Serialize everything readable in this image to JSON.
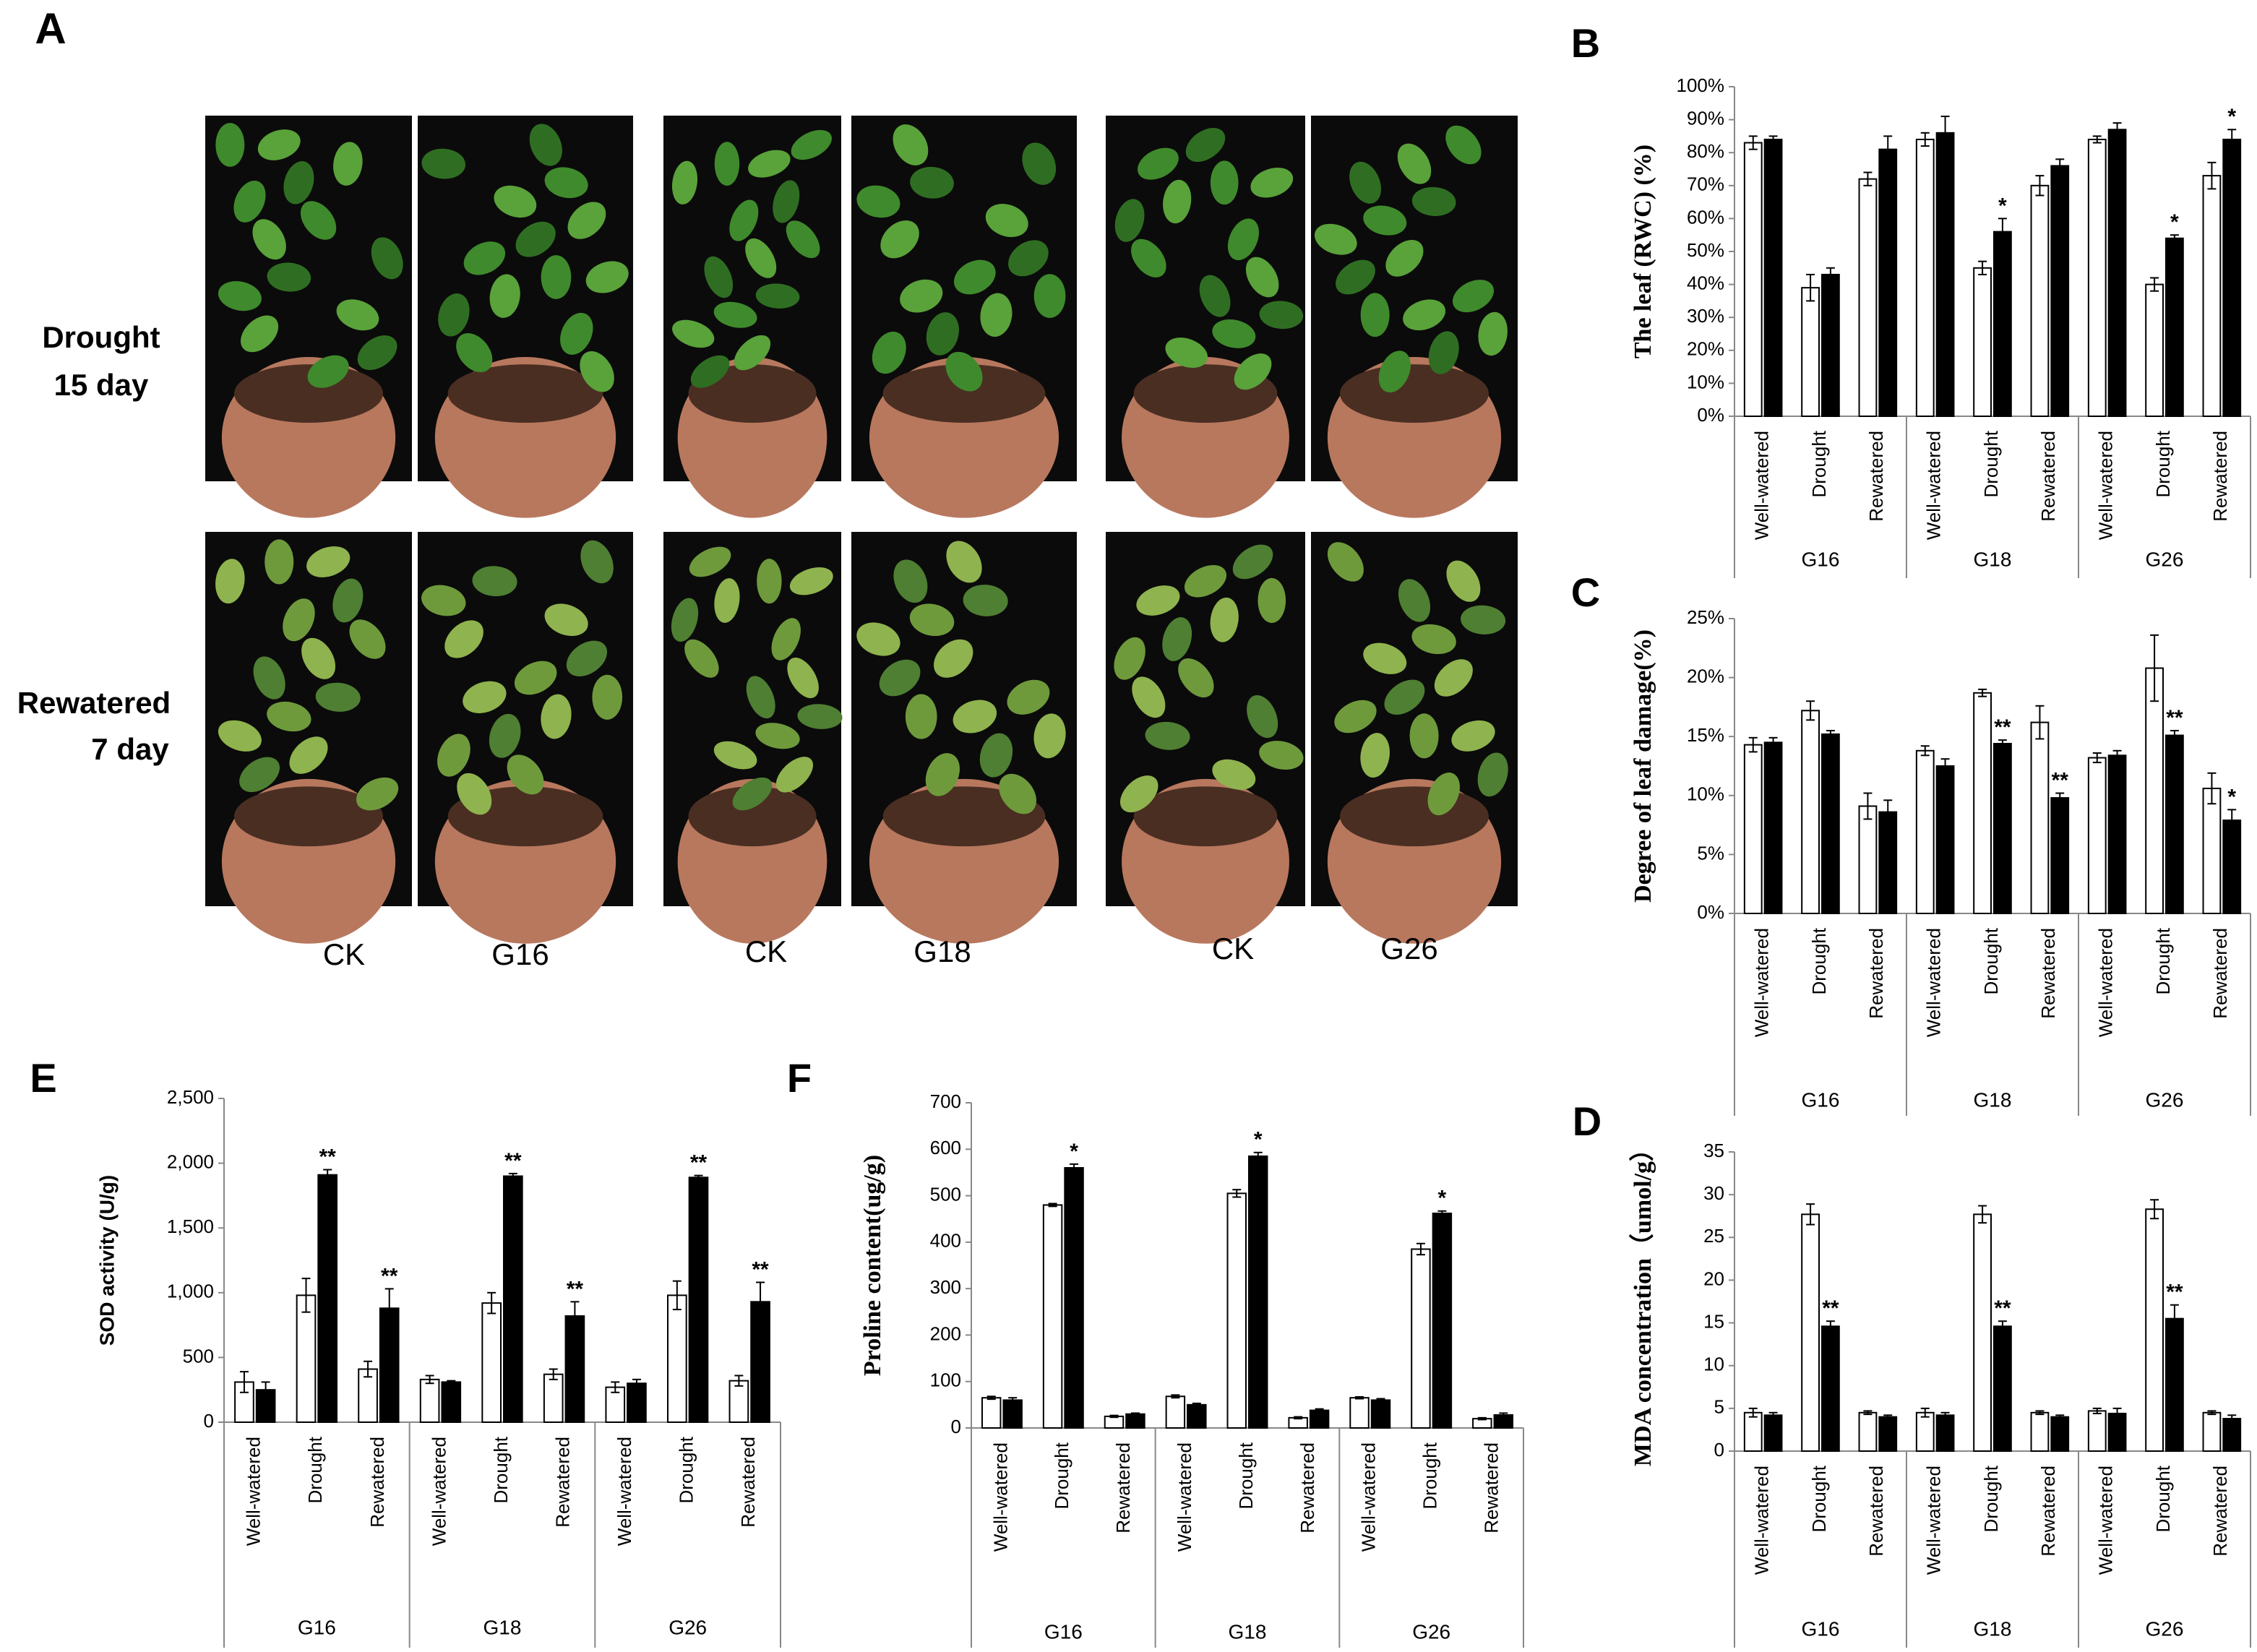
{
  "photo_panel": {
    "label": "A",
    "rows": [
      [
        "Drought",
        "15 day"
      ],
      [
        "Rewatered",
        "7 day"
      ]
    ],
    "columns": [
      "CK",
      "G16",
      "CK",
      "G18",
      "CK",
      "G26"
    ]
  },
  "chart_data": [
    {
      "type": "bar",
      "panel": "B",
      "ylabel": "The leaf (RWC) (%)",
      "categories": [
        "Well-watered",
        "Drought",
        "Rewatered",
        "Well-watered",
        "Drought",
        "Rewatered",
        "Well-watered",
        "Drought",
        "Rewatered"
      ],
      "groups": [
        "G16",
        "G18",
        "G26"
      ],
      "series": [
        {
          "color": "#ffffff",
          "values": [
            83,
            39,
            72,
            84,
            45,
            70,
            84,
            40,
            73
          ],
          "errors": [
            2,
            4,
            2,
            2,
            2,
            3,
            1,
            2,
            4
          ]
        },
        {
          "color": "#000000",
          "values": [
            84,
            43,
            81,
            86,
            56,
            76,
            87,
            54,
            84
          ],
          "errors": [
            1,
            2,
            4,
            5,
            4,
            2,
            2,
            1,
            3
          ],
          "significance": [
            null,
            null,
            null,
            null,
            "*",
            null,
            null,
            "*",
            "*"
          ]
        }
      ],
      "ylim": [
        0,
        100
      ],
      "yticks": [
        {
          "value": 0,
          "label": "0%"
        },
        {
          "value": 10,
          "label": "10%"
        },
        {
          "value": 20,
          "label": "20%"
        },
        {
          "value": 30,
          "label": "30%"
        },
        {
          "value": 40,
          "label": "40%"
        },
        {
          "value": 50,
          "label": "50%"
        },
        {
          "value": 60,
          "label": "60%"
        },
        {
          "value": 70,
          "label": "70%"
        },
        {
          "value": 80,
          "label": "80%"
        },
        {
          "value": 90,
          "label": "90%"
        },
        {
          "value": 100,
          "label": "100%"
        }
      ]
    },
    {
      "type": "bar",
      "panel": "C",
      "ylabel": "Degree of leaf damage(%)",
      "categories": [
        "Well-watered",
        "Drought",
        "Rewatered",
        "Well-watered",
        "Drought",
        "Rewatered",
        "Well-watered",
        "Drought",
        "Rewatered"
      ],
      "groups": [
        "G16",
        "G18",
        "G26"
      ],
      "series": [
        {
          "color": "#ffffff",
          "values": [
            14.3,
            17.2,
            9.1,
            13.8,
            18.7,
            16.2,
            13.2,
            20.8,
            10.6
          ],
          "errors": [
            0.6,
            0.8,
            1.1,
            0.4,
            0.3,
            1.4,
            0.4,
            2.8,
            1.3
          ]
        },
        {
          "color": "#000000",
          "values": [
            14.5,
            15.2,
            8.6,
            12.5,
            14.4,
            9.8,
            13.4,
            15.1,
            7.9
          ],
          "errors": [
            0.4,
            0.3,
            1.0,
            0.6,
            0.3,
            0.4,
            0.4,
            0.4,
            0.9
          ],
          "significance": [
            null,
            null,
            null,
            null,
            "**",
            "**",
            null,
            "**",
            "*"
          ]
        }
      ],
      "ylim": [
        0,
        25
      ],
      "yticks": [
        {
          "value": 0,
          "label": "0%"
        },
        {
          "value": 5,
          "label": "5%"
        },
        {
          "value": 10,
          "label": "10%"
        },
        {
          "value": 15,
          "label": "15%"
        },
        {
          "value": 20,
          "label": "20%"
        },
        {
          "value": 25,
          "label": "25%"
        }
      ]
    },
    {
      "type": "bar",
      "panel": "D",
      "ylabel": "MDA concentration（umol/g）",
      "categories": [
        "Well-watered",
        "Drought",
        "Rewatered",
        "Well-watered",
        "Drought",
        "Rewatered",
        "Well-watered",
        "Drought",
        "Rewatered"
      ],
      "groups": [
        "G16",
        "G18",
        "G26"
      ],
      "series": [
        {
          "color": "#ffffff",
          "values": [
            4.5,
            27.7,
            4.5,
            4.5,
            27.7,
            4.5,
            4.7,
            28.3,
            4.5
          ],
          "errors": [
            0.5,
            1.2,
            0.2,
            0.5,
            1.0,
            0.2,
            0.3,
            1.1,
            0.2
          ]
        },
        {
          "color": "#000000",
          "values": [
            4.2,
            14.6,
            4.0,
            4.2,
            14.6,
            4.0,
            4.4,
            15.5,
            3.8
          ],
          "errors": [
            0.3,
            0.6,
            0.2,
            0.3,
            0.6,
            0.2,
            0.6,
            1.6,
            0.4
          ],
          "significance": [
            null,
            "**",
            null,
            null,
            "**",
            null,
            null,
            "**",
            null
          ]
        }
      ],
      "ylim": [
        0,
        35
      ],
      "yticks": [
        0,
        5,
        10,
        15,
        20,
        25,
        30,
        35
      ]
    },
    {
      "type": "bar",
      "panel": "E",
      "ylabel": "SOD activity (U/g)",
      "categories": [
        "Well-watered",
        "Drought",
        "Rewatered",
        "Well-watered",
        "Drought",
        "Rewatered",
        "Well-watered",
        "Drought",
        "Rewatered"
      ],
      "groups": [
        "G16",
        "G18",
        "G26"
      ],
      "series": [
        {
          "color": "#ffffff",
          "values": [
            310,
            980,
            410,
            330,
            920,
            370,
            270,
            980,
            320
          ],
          "errors": [
            80,
            130,
            60,
            30,
            80,
            40,
            40,
            110,
            40
          ]
        },
        {
          "color": "#000000",
          "values": [
            250,
            1910,
            880,
            310,
            1900,
            820,
            300,
            1890,
            930
          ],
          "errors": [
            60,
            40,
            150,
            10,
            20,
            110,
            30,
            15,
            150
          ],
          "significance": [
            null,
            "**",
            "**",
            null,
            "**",
            "**",
            null,
            "**",
            "**"
          ]
        }
      ],
      "ylim": [
        0,
        2500
      ],
      "yticks": [
        0,
        500,
        {
          "value": 1000,
          "label": "1,000"
        },
        {
          "value": 1500,
          "label": "1,500"
        },
        {
          "value": 2000,
          "label": "2,000"
        },
        {
          "value": 2500,
          "label": "2,500"
        }
      ]
    },
    {
      "type": "bar",
      "panel": "F",
      "ylabel": "Proline content(ug/g)",
      "categories": [
        "Well-watered",
        "Drought",
        "Rewatered",
        "Well-watered",
        "Drought",
        "Rewatered",
        "Well-watered",
        "Drought",
        "Rewatered"
      ],
      "groups": [
        "G16",
        "G18",
        "G26"
      ],
      "series": [
        {
          "color": "#ffffff",
          "values": [
            65,
            480,
            25,
            68,
            505,
            22,
            65,
            385,
            20
          ],
          "errors": [
            3,
            3,
            2,
            3,
            8,
            2,
            2,
            12,
            2
          ]
        },
        {
          "color": "#000000",
          "values": [
            60,
            560,
            30,
            50,
            585,
            38,
            60,
            462,
            28
          ],
          "errors": [
            5,
            8,
            2,
            3,
            8,
            3,
            3,
            5,
            4
          ],
          "significance": [
            null,
            "*",
            null,
            null,
            "*",
            null,
            null,
            "*",
            null
          ]
        }
      ],
      "ylim": [
        0,
        700
      ],
      "yticks": [
        0,
        100,
        200,
        300,
        400,
        500,
        600,
        700
      ]
    }
  ]
}
